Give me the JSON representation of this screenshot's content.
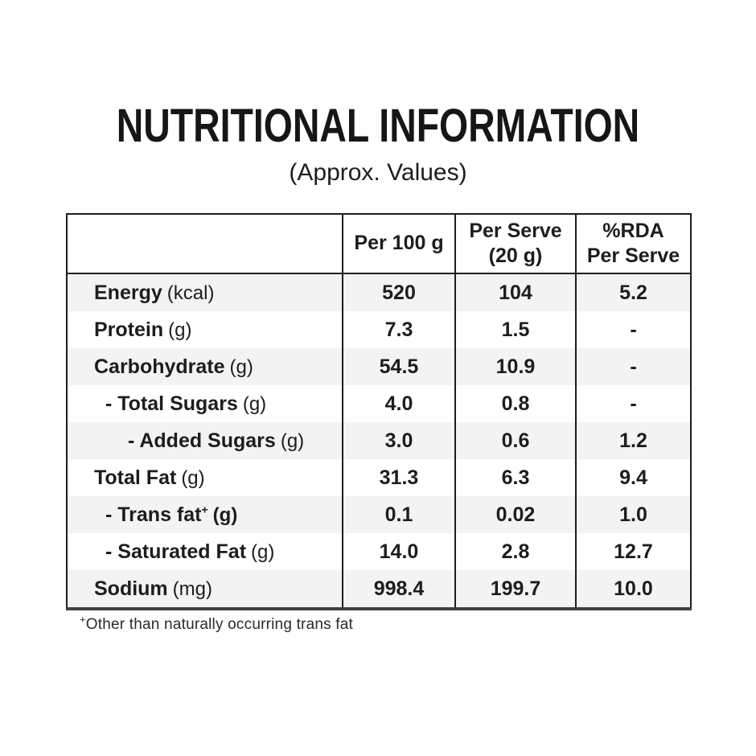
{
  "page": {
    "title": "NUTRITIONAL INFORMATION",
    "subtitle": "(Approx. Values)"
  },
  "table": {
    "headers": [
      {
        "line1": "",
        "line2": ""
      },
      {
        "line1": "Per 100 g",
        "line2": ""
      },
      {
        "line1": "Per Serve",
        "line2": "(20 g)"
      },
      {
        "line1": "%RDA",
        "line2": "Per Serve"
      }
    ],
    "rows": [
      {
        "name": "Energy",
        "sup": "",
        "unit": "(kcal)",
        "per_100g": "520",
        "per_serve": "104",
        "rda_per_serve": "5.2"
      },
      {
        "name": "Protein",
        "sup": "",
        "unit": "(g)",
        "per_100g": "7.3",
        "per_serve": "1.5",
        "rda_per_serve": "-"
      },
      {
        "name": "Carbohydrate",
        "sup": "",
        "unit": "(g)",
        "per_100g": "54.5",
        "per_serve": "10.9",
        "rda_per_serve": "-"
      },
      {
        "name": "- Total Sugars",
        "sup": "",
        "unit": "(g)",
        "per_100g": "4.0",
        "per_serve": "0.8",
        "rda_per_serve": "-"
      },
      {
        "name": "- Added Sugars",
        "sup": "",
        "unit": "(g)",
        "per_100g": "3.0",
        "per_serve": "0.6",
        "rda_per_serve": "1.2"
      },
      {
        "name": "Total Fat",
        "sup": "",
        "unit": "(g)",
        "per_100g": "31.3",
        "per_serve": "6.3",
        "rda_per_serve": "9.4"
      },
      {
        "name": "- Trans fat",
        "sup": "+",
        "unit": "(g)",
        "per_100g": "0.1",
        "per_serve": "0.02",
        "rda_per_serve": "1.0"
      },
      {
        "name": "- Saturated Fat",
        "sup": "",
        "unit": "(g)",
        "per_100g": "14.0",
        "per_serve": "2.8",
        "rda_per_serve": "12.7"
      },
      {
        "name": "Sodium",
        "sup": "",
        "unit": "(mg)",
        "per_100g": "998.4",
        "per_serve": "199.7",
        "rda_per_serve": "10.0"
      }
    ]
  },
  "footnote": {
    "symbol": "+",
    "text": "Other than naturally occurring trans fat"
  },
  "colors": {
    "background": "#ffffff",
    "text": "#1d1d1d",
    "border": "#1d1d1d",
    "bottom_border": "#3f3f3f",
    "row_stripe": "#f3f3f3"
  }
}
